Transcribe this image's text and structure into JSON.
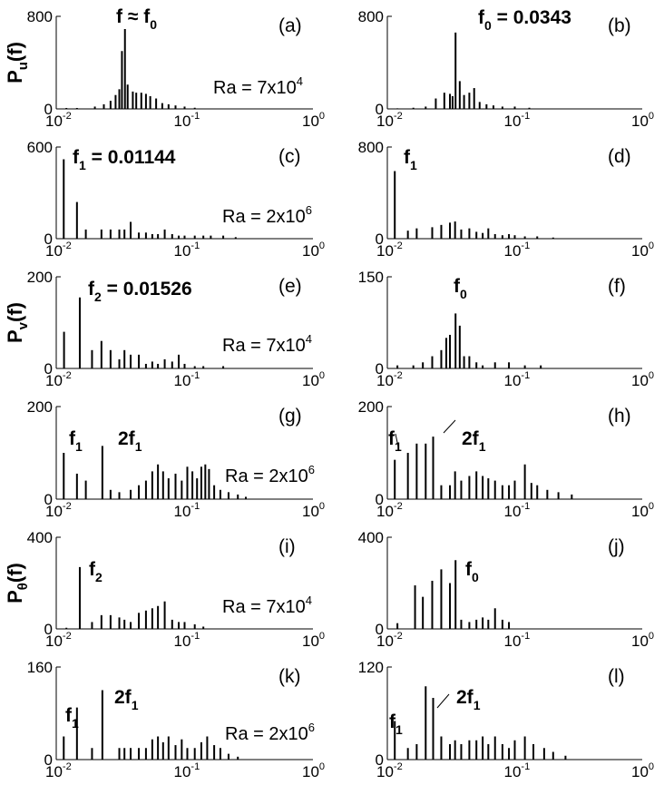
{
  "chart_data": [
    {
      "type": "bar",
      "panel_label": "(a)",
      "ymax_tick": "800",
      "ylim": [
        0,
        800
      ],
      "xscale": "log",
      "xlim": [
        0.01,
        1
      ],
      "xtick_labels": [
        "10",
        "-2",
        "10",
        "-1",
        "10",
        "0"
      ],
      "ylabel": "P",
      "ylabel_sub": "u",
      "ylabel_tail": "(f)",
      "annotations": [
        {
          "text": "f ≈ f",
          "sub": "0",
          "sup": ""
        },
        {
          "text": "Ra = 7x10",
          "sub": "",
          "sup": "4"
        }
      ],
      "x": [
        0.012,
        0.0145,
        0.02,
        0.0235,
        0.0265,
        0.029,
        0.031,
        0.0325,
        0.0343,
        0.036,
        0.0395,
        0.042,
        0.046,
        0.05,
        0.054,
        0.06,
        0.067,
        0.075,
        0.085,
        0.1,
        0.12
      ],
      "y": [
        8,
        8,
        20,
        40,
        70,
        120,
        170,
        500,
        690,
        210,
        150,
        140,
        140,
        130,
        110,
        90,
        50,
        40,
        30,
        20,
        10
      ]
    },
    {
      "type": "bar",
      "panel_label": "(b)",
      "ymax_tick": "800",
      "ylim": [
        0,
        800
      ],
      "xscale": "log",
      "xlim": [
        0.01,
        1
      ],
      "xtick_labels": [
        "10",
        "-2",
        "10",
        "-1",
        "10",
        "0"
      ],
      "annotations": [
        {
          "text": "f",
          "sub": "0",
          "sup": "",
          "tail": " = 0.0343"
        }
      ],
      "x": [
        0.012,
        0.016,
        0.02,
        0.024,
        0.028,
        0.031,
        0.0325,
        0.0343,
        0.037,
        0.04,
        0.044,
        0.048,
        0.053,
        0.06,
        0.068,
        0.08,
        0.1,
        0.13
      ],
      "y": [
        5,
        10,
        20,
        90,
        140,
        130,
        110,
        660,
        240,
        120,
        140,
        180,
        60,
        40,
        30,
        20,
        20,
        10
      ]
    },
    {
      "type": "bar",
      "panel_label": "(c)",
      "ymax_tick": "600",
      "ylim": [
        0,
        600
      ],
      "xscale": "log",
      "xlim": [
        0.01,
        1
      ],
      "xtick_labels": [
        "10",
        "-2",
        "10",
        "-1",
        "10",
        "0"
      ],
      "annotations": [
        {
          "text": "f",
          "sub": "1",
          "sup": "",
          "tail": " = 0.01144"
        },
        {
          "text": "Ra = 2x10",
          "sub": "",
          "sup": "6"
        }
      ],
      "x": [
        0.01144,
        0.0145,
        0.017,
        0.0225,
        0.0265,
        0.031,
        0.034,
        0.038,
        0.044,
        0.05,
        0.056,
        0.062,
        0.07,
        0.08,
        0.09,
        0.1,
        0.12,
        0.14,
        0.16,
        0.2,
        0.25
      ],
      "y": [
        520,
        240,
        60,
        60,
        60,
        60,
        60,
        110,
        40,
        40,
        30,
        30,
        60,
        30,
        20,
        20,
        20,
        20,
        20,
        20,
        10
      ]
    },
    {
      "type": "bar",
      "panel_label": "(d)",
      "ymax_tick": "800",
      "ylim": [
        0,
        800
      ],
      "xscale": "log",
      "xlim": [
        0.01,
        1
      ],
      "xtick_labels": [
        "10",
        "-2",
        "10",
        "-1",
        "10",
        "0"
      ],
      "annotations": [
        {
          "text": "f",
          "sub": "1",
          "sup": ""
        }
      ],
      "x": [
        0.01144,
        0.0145,
        0.017,
        0.0225,
        0.0265,
        0.031,
        0.034,
        0.038,
        0.044,
        0.05,
        0.056,
        0.062,
        0.07,
        0.08,
        0.09,
        0.1,
        0.12,
        0.15,
        0.2
      ],
      "y": [
        590,
        70,
        90,
        100,
        120,
        140,
        150,
        80,
        90,
        60,
        50,
        90,
        40,
        30,
        40,
        30,
        20,
        20,
        10
      ]
    },
    {
      "type": "bar",
      "panel_label": "(e)",
      "ymax_tick": "200",
      "ylim": [
        0,
        200
      ],
      "xscale": "log",
      "xlim": [
        0.01,
        1
      ],
      "xtick_labels": [
        "10",
        "-2",
        "10",
        "-1",
        "10",
        "0"
      ],
      "ylabel": "P",
      "ylabel_sub": "v",
      "ylabel_tail": "(f)",
      "annotations": [
        {
          "text": "f",
          "sub": "2",
          "sup": "",
          "tail": " = 0.01526"
        },
        {
          "text": "Ra = 7x10",
          "sub": "",
          "sup": "4"
        }
      ],
      "x": [
        0.0115,
        0.01526,
        0.019,
        0.0225,
        0.0265,
        0.031,
        0.034,
        0.038,
        0.044,
        0.05,
        0.056,
        0.062,
        0.07,
        0.08,
        0.09,
        0.1,
        0.12,
        0.14,
        0.2
      ],
      "y": [
        80,
        155,
        40,
        60,
        40,
        20,
        40,
        30,
        30,
        10,
        15,
        10,
        20,
        15,
        30,
        10,
        5,
        5,
        5
      ]
    },
    {
      "type": "bar",
      "panel_label": "(f)",
      "ymax_tick": "150",
      "ylim": [
        0,
        150
      ],
      "xscale": "log",
      "xlim": [
        0.01,
        1
      ],
      "xtick_labels": [
        "10",
        "-2",
        "10",
        "-1",
        "10",
        "0"
      ],
      "annotations": [
        {
          "text": "f",
          "sub": "0",
          "sup": ""
        }
      ],
      "x": [
        0.012,
        0.016,
        0.019,
        0.0225,
        0.0265,
        0.029,
        0.031,
        0.0343,
        0.037,
        0.04,
        0.044,
        0.05,
        0.056,
        0.07,
        0.09,
        0.12,
        0.16
      ],
      "y": [
        5,
        5,
        10,
        20,
        30,
        50,
        55,
        90,
        70,
        20,
        20,
        10,
        5,
        10,
        10,
        5,
        5
      ]
    },
    {
      "type": "bar",
      "panel_label": "(g)",
      "ymax_tick": "200",
      "ylim": [
        0,
        200
      ],
      "xscale": "log",
      "xlim": [
        0.01,
        1
      ],
      "xtick_labels": [
        "10",
        "-2",
        "10",
        "-1",
        "10",
        "0"
      ],
      "annotations": [
        {
          "text": "f",
          "sub": "1",
          "sup": ""
        },
        {
          "text": "2f",
          "sub": "1",
          "sup": ""
        },
        {
          "text": "Ra = 2x10",
          "sub": "",
          "sup": "6"
        }
      ],
      "x": [
        0.01144,
        0.0145,
        0.017,
        0.02288,
        0.0265,
        0.031,
        0.038,
        0.044,
        0.05,
        0.056,
        0.062,
        0.068,
        0.075,
        0.085,
        0.095,
        0.105,
        0.115,
        0.125,
        0.135,
        0.145,
        0.155,
        0.17,
        0.19,
        0.22,
        0.26,
        0.3
      ],
      "y": [
        100,
        55,
        40,
        115,
        20,
        15,
        20,
        30,
        40,
        60,
        75,
        60,
        45,
        55,
        40,
        70,
        60,
        45,
        70,
        75,
        65,
        30,
        20,
        15,
        10,
        5
      ]
    },
    {
      "type": "bar",
      "panel_label": "(h)",
      "ymax_tick": "200",
      "ylim": [
        0,
        200
      ],
      "xscale": "log",
      "xlim": [
        0.01,
        1
      ],
      "xtick_labels": [
        "10",
        "-2",
        "10",
        "-1",
        "10",
        "0"
      ],
      "annotations": [
        {
          "text": "f",
          "sub": "1",
          "sup": ""
        },
        {
          "text": "2f",
          "sub": "1",
          "sup": ""
        }
      ],
      "x": [
        0.01144,
        0.0145,
        0.017,
        0.02,
        0.02288,
        0.0265,
        0.031,
        0.034,
        0.038,
        0.044,
        0.05,
        0.056,
        0.062,
        0.07,
        0.08,
        0.09,
        0.1,
        0.12,
        0.135,
        0.15,
        0.18,
        0.22,
        0.28
      ],
      "y": [
        85,
        100,
        120,
        120,
        135,
        30,
        30,
        60,
        40,
        50,
        60,
        50,
        45,
        40,
        30,
        30,
        40,
        75,
        35,
        30,
        20,
        15,
        10
      ]
    },
    {
      "type": "bar",
      "panel_label": "(i)",
      "ymax_tick": "400",
      "ylim": [
        0,
        400
      ],
      "xscale": "log",
      "xlim": [
        0.01,
        1
      ],
      "xtick_labels": [
        "10",
        "-2",
        "10",
        "-1",
        "10",
        "0"
      ],
      "ylabel": "P",
      "ylabel_sub": "θ",
      "ylabel_tail": "(f)",
      "annotations": [
        {
          "text": "f",
          "sub": "2",
          "sup": ""
        },
        {
          "text": "Ra = 7x10",
          "sub": "",
          "sup": "4"
        }
      ],
      "x": [
        0.012,
        0.01526,
        0.019,
        0.0225,
        0.0265,
        0.031,
        0.034,
        0.038,
        0.044,
        0.05,
        0.056,
        0.062,
        0.07,
        0.08,
        0.09,
        0.1,
        0.12,
        0.14
      ],
      "y": [
        5,
        270,
        30,
        60,
        60,
        50,
        40,
        30,
        70,
        80,
        90,
        100,
        120,
        40,
        30,
        30,
        20,
        10
      ]
    },
    {
      "type": "bar",
      "panel_label": "(j)",
      "ymax_tick": "400",
      "ylim": [
        0,
        400
      ],
      "xscale": "log",
      "xlim": [
        0.01,
        1
      ],
      "xtick_labels": [
        "10",
        "-2",
        "10",
        "-1",
        "10",
        "0"
      ],
      "annotations": [
        {
          "text": "f",
          "sub": "0",
          "sup": ""
        }
      ],
      "x": [
        0.012,
        0.0165,
        0.019,
        0.0225,
        0.0265,
        0.031,
        0.0343,
        0.038,
        0.044,
        0.05,
        0.056,
        0.062,
        0.07,
        0.08,
        0.09
      ],
      "y": [
        25,
        190,
        140,
        210,
        260,
        200,
        300,
        40,
        30,
        40,
        50,
        40,
        90,
        40,
        30
      ]
    },
    {
      "type": "bar",
      "panel_label": "(k)",
      "ymax_tick": "160",
      "ylim": [
        0,
        160
      ],
      "xscale": "log",
      "xlim": [
        0.01,
        1
      ],
      "xtick_labels": [
        "10",
        "-2",
        "10",
        "-1",
        "10",
        "0"
      ],
      "annotations": [
        {
          "text": "f",
          "sub": "1",
          "sup": ""
        },
        {
          "text": "2f",
          "sub": "1",
          "sup": ""
        },
        {
          "text": "Ra = 2x10",
          "sub": "",
          "sup": "6"
        }
      ],
      "x": [
        0.01144,
        0.0145,
        0.019,
        0.02288,
        0.031,
        0.034,
        0.038,
        0.044,
        0.05,
        0.056,
        0.062,
        0.068,
        0.075,
        0.085,
        0.095,
        0.105,
        0.12,
        0.135,
        0.15,
        0.17,
        0.19,
        0.22,
        0.26
      ],
      "y": [
        40,
        90,
        20,
        120,
        20,
        20,
        20,
        20,
        20,
        35,
        40,
        30,
        40,
        25,
        35,
        20,
        20,
        30,
        40,
        25,
        20,
        10,
        5
      ]
    },
    {
      "type": "bar",
      "panel_label": "(l)",
      "ymax_tick": "120",
      "ylim": [
        0,
        120
      ],
      "xscale": "log",
      "xlim": [
        0.01,
        1
      ],
      "xtick_labels": [
        "10",
        "-2",
        "10",
        "-1",
        "10",
        "0"
      ],
      "annotations": [
        {
          "text": "f",
          "sub": "1",
          "sup": ""
        },
        {
          "text": "2f",
          "sub": "1",
          "sup": ""
        }
      ],
      "x": [
        0.01144,
        0.0145,
        0.017,
        0.02,
        0.02288,
        0.0265,
        0.031,
        0.034,
        0.038,
        0.044,
        0.05,
        0.056,
        0.062,
        0.07,
        0.08,
        0.09,
        0.1,
        0.12,
        0.14,
        0.17,
        0.2,
        0.25
      ],
      "y": [
        50,
        15,
        20,
        95,
        80,
        30,
        20,
        25,
        20,
        25,
        25,
        30,
        20,
        30,
        20,
        15,
        25,
        30,
        20,
        15,
        10,
        5
      ]
    }
  ]
}
